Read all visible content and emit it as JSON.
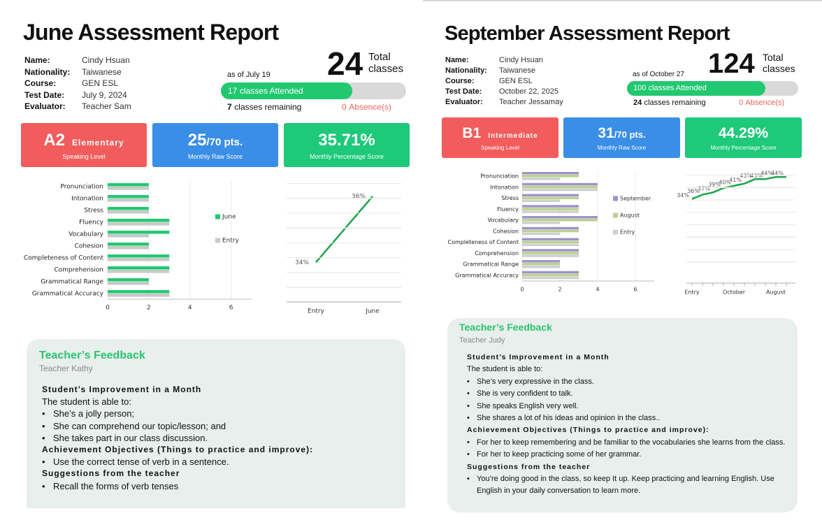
{
  "reports": [
    {
      "title": "June Assessment Report",
      "info": {
        "labels": [
          "Name:",
          "Nationality:",
          "Course:",
          "Test Date:",
          "Evaluator:"
        ],
        "values": [
          "Cindy Hsuan",
          "Taiwanese",
          "GEN ESL",
          "July 9, 2024",
          "Teacher Sam"
        ]
      },
      "as_of": "as of July 19",
      "total_classes": 24,
      "total_label": "Total classes",
      "attended": 17,
      "attended_label": "classes Attended",
      "remaining": 7,
      "remaining_label": "classes remaining",
      "absences": 0,
      "absence_label": "Absence(s)",
      "cards": {
        "level": "A2",
        "level_name": "Elementary",
        "level_caption": "Speaking Level",
        "raw_score": 25,
        "raw_score_suffix": "/70 pts.",
        "raw_caption": "Monthly Raw Score",
        "percentage": "35.71%",
        "percentage_caption": "Monthly Percentage Score"
      },
      "skills_chart": {
        "type": "bar",
        "categories": [
          "Pronunciation",
          "Intonation",
          "Stress",
          "Fluency",
          "Vocabulary",
          "Cohesion",
          "Completeness of Content",
          "Comprehension",
          "Grammatical Range",
          "Grammatical Accuracy"
        ],
        "series": [
          {
            "name": "June",
            "color": "#22c870",
            "values": [
              2,
              2,
              2,
              3,
              3,
              2,
              3,
              3,
              2,
              3
            ]
          },
          {
            "name": "Entry",
            "color": "#c9c9c9",
            "values": [
              2,
              2,
              2,
              3,
              2,
              2,
              3,
              3,
              2,
              3
            ]
          }
        ],
        "xlim": [
          0,
          7
        ],
        "xticks": [
          0,
          2,
          4,
          6
        ]
      },
      "progress_chart": {
        "type": "line",
        "categories": [
          "Entry",
          "June"
        ],
        "values": [
          34,
          36
        ],
        "value_labels": [
          "34%",
          "36%"
        ],
        "color": "#1aa34a",
        "ylim": [
          32.8,
          36.4
        ]
      },
      "feedback": {
        "title": "Teacher’s Feedback",
        "teacher": "Teacher Kathy",
        "sections": [
          {
            "heading": "Student’s Improvement in a Month",
            "intro": "The student is able to:",
            "items": [
              "She’s a jolly person;",
              "She can comprehend our topic/lesson; and",
              "She takes part in our class discussion."
            ]
          },
          {
            "heading": "Achievement Objectives (Things to practice and improve):",
            "items": [
              "Use the correct tense of verb in a sentence."
            ]
          },
          {
            "heading": "Suggestions from the teacher",
            "items": [
              "Recall the forms of verb tenses"
            ]
          }
        ]
      }
    },
    {
      "title": "September Assessment Report",
      "info": {
        "labels": [
          "Name:",
          "Nationality:",
          "Course:",
          "Test Date:",
          "Evaluator:"
        ],
        "values": [
          "Cindy Hsuan",
          "Taiwanese",
          "GEN ESL",
          "October 22, 2025",
          "Teacher Jessamay"
        ]
      },
      "as_of": "as of October 27",
      "total_classes": 124,
      "total_label": "Total classes",
      "attended": 100,
      "attended_label": "classes Attended",
      "remaining": 24,
      "remaining_label": "classes remaining",
      "absences": 0,
      "absence_label": "Absence(s)",
      "cards": {
        "level": "B1",
        "level_name": "Intermediate",
        "level_caption": "Speaking Level",
        "raw_score": 31,
        "raw_score_suffix": "/70 pts.",
        "raw_caption": "Monthly Raw Score",
        "percentage": "44.29%",
        "percentage_caption": "Monthly Percentage Score"
      },
      "skills_chart": {
        "type": "bar",
        "categories": [
          "Pronunciation",
          "Intonation",
          "Stress",
          "Fluency",
          "Vocabulary",
          "Cohesion",
          "Completeness of Content",
          "Comprehension",
          "Grammatical Range",
          "Grammatical Accuracy"
        ],
        "series": [
          {
            "name": "September",
            "color": "#9e93c8",
            "values": [
              3,
              4,
              3,
              3,
              4,
              3,
              3,
              3,
              2,
              3
            ]
          },
          {
            "name": "August",
            "color": "#b9d18f",
            "values": [
              3,
              4,
              3,
              3,
              4,
              3,
              3,
              3,
              2,
              3
            ]
          },
          {
            "name": "Entry",
            "color": "#cfcfcf",
            "values": [
              2,
              4,
              2,
              3,
              2,
              2,
              3,
              3,
              2,
              3
            ]
          }
        ],
        "xlim": [
          0,
          7
        ],
        "xticks": [
          0,
          2,
          4,
          6
        ]
      },
      "progress_chart": {
        "type": "line",
        "categories": [
          "Entry",
          null,
          null,
          null,
          "October",
          null,
          null,
          null,
          "August",
          null
        ],
        "values": [
          34,
          36,
          37,
          39,
          40,
          41,
          43,
          43,
          44,
          44
        ],
        "value_labels": [
          "34%",
          "36%",
          "37%",
          "39%",
          "40%",
          "41%",
          "43%",
          "43%",
          "44%",
          "44%"
        ],
        "color": "#19a54a",
        "ylim": [
          0,
          45
        ]
      },
      "feedback": {
        "title": "Teacher’s Feedback",
        "teacher": "Teacher Judy",
        "sections": [
          {
            "heading": "Student’s Improvement in a Month",
            "intro": "The student is able to:",
            "items": [
              "She’s very expressive in the class.",
              "She is very confident to talk.",
              "She speaks English very well.",
              "She shares a lot of his ideas and opinion in the class.."
            ]
          },
          {
            "heading": "Achievement Objectives (Things to practice and improve):",
            "items": [
              "For her to keep remembering and be familiar to the vocabularies she learns from the class.",
              "For her to keep practicing some of her grammar."
            ]
          },
          {
            "heading": "Suggestions from the teacher",
            "items": [
              "You’re doing good in the class, so keep It up. Keep practicing and learning English. Use English in your daily conversation to learn more."
            ]
          }
        ]
      }
    }
  ]
}
